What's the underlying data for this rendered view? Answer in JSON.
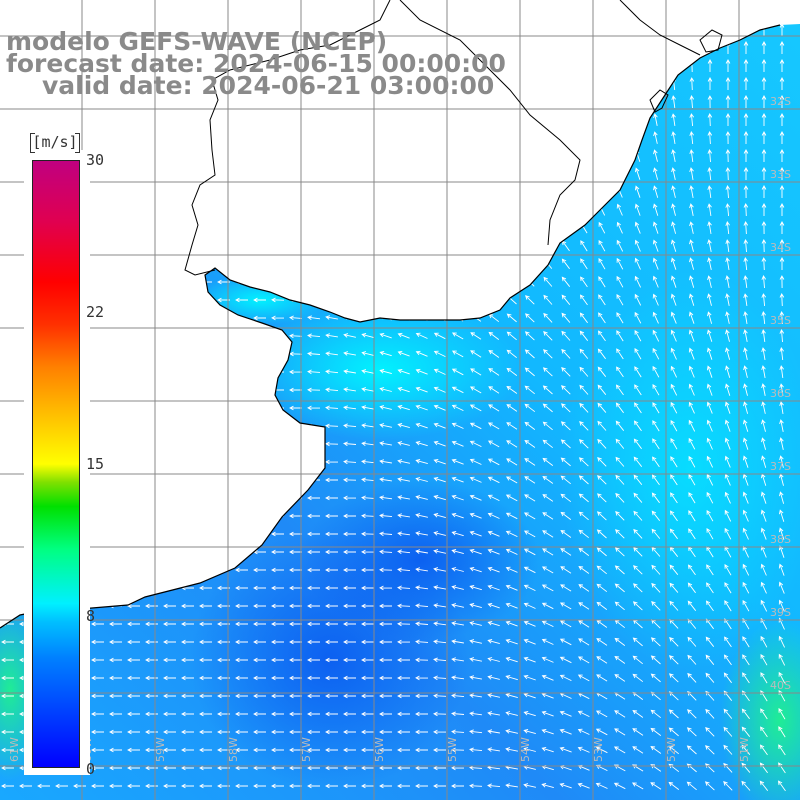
{
  "title": {
    "line1": "modelo GEFS-WAVE (NCEP)",
    "line2": "forecast date: 2024-06-15 00:00:00",
    "line3": "valid date: 2024-06-21 03:00:00"
  },
  "colorbar": {
    "units": "[m/s]",
    "ticks": [
      "30",
      "22",
      "15",
      "8",
      "0"
    ],
    "tick_values": [
      30,
      22,
      15,
      8,
      0
    ],
    "range": [
      0,
      30
    ],
    "colors": [
      "#0000ff",
      "#00c0ff",
      "#00ffff",
      "#00ff80",
      "#00e000",
      "#ffff00",
      "#ff8000",
      "#ff0000",
      "#c00080"
    ]
  },
  "map": {
    "land_color": "#ffffff",
    "coast_color": "#000000",
    "grid_color": "#888888",
    "lat_labels": [
      "32S",
      "33S",
      "34S",
      "35S",
      "36S",
      "37S",
      "38S",
      "39S",
      "40S"
    ],
    "lon_labels": [
      "61W",
      "60W",
      "59W",
      "58W",
      "57W",
      "56W",
      "55W",
      "54W",
      "53W",
      "52W",
      "51W"
    ]
  }
}
